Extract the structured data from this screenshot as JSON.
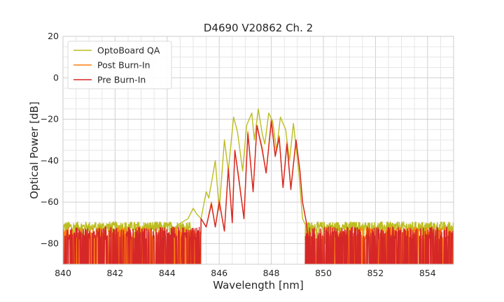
{
  "chart_data": {
    "type": "line",
    "title": "D4690 V20862 Ch. 2",
    "xlabel": "Wavelength [nm]",
    "ylabel": "Optical Power [dB]",
    "xlim": [
      840,
      855
    ],
    "ylim": [
      -90,
      20
    ],
    "xticks": [
      "840",
      "842",
      "844",
      "846",
      "848",
      "850",
      "852",
      "854"
    ],
    "xtick_values": [
      840,
      842,
      844,
      846,
      848,
      850,
      852,
      854
    ],
    "yticks": [
      "20",
      "0",
      "−20",
      "−40",
      "−60",
      "−80"
    ],
    "ytick_values": [
      20,
      0,
      -20,
      -40,
      -60,
      -80
    ],
    "grid": true,
    "legend_position": "top-left",
    "series": [
      {
        "name": "OptoBoard QA",
        "color": "#bcbd22",
        "noise_floor": -72,
        "noise_range_low": [
          840,
          844.9
        ],
        "noise_range_high": [
          849.3,
          855
        ],
        "x": [
          844.4,
          844.8,
          845.0,
          845.15,
          845.3,
          845.5,
          845.6,
          845.85,
          846.0,
          846.2,
          846.35,
          846.55,
          846.7,
          846.9,
          847.05,
          847.25,
          847.35,
          847.5,
          847.65,
          847.75,
          847.9,
          848.05,
          848.2,
          848.35,
          848.55,
          848.7,
          848.85,
          849.05,
          849.2,
          849.35
        ],
        "y": [
          -71,
          -68,
          -63,
          -66,
          -68,
          -55,
          -58,
          -40,
          -64,
          -30,
          -45,
          -19,
          -26,
          -45,
          -23,
          -17,
          -30,
          -15,
          -27,
          -32,
          -17,
          -21,
          -35,
          -19,
          -25,
          -40,
          -22,
          -45,
          -68,
          -72
        ]
      },
      {
        "name": "Post Burn-In",
        "color": "#ff7f0e",
        "noise_floor": -85,
        "noise_range_low": [
          840,
          845.3
        ],
        "noise_range_high": [
          849.3,
          855
        ],
        "x": [
          845.3,
          845.5,
          845.7,
          845.85,
          846.0,
          846.2,
          846.35,
          846.5,
          846.6,
          846.75,
          846.95,
          847.1,
          847.3,
          847.45,
          847.65,
          847.8,
          848.0,
          848.15,
          848.3,
          848.45,
          848.6,
          848.75,
          848.95,
          849.1,
          849.2,
          849.35,
          849.45
        ],
        "y": [
          -68,
          -72,
          -60,
          -72,
          -59,
          -74,
          -43,
          -70,
          -35,
          -48,
          -68,
          -26,
          -55,
          -23,
          -34,
          -46,
          -20,
          -37,
          -28,
          -53,
          -31,
          -53,
          -30,
          -45,
          -60,
          -70,
          -85
        ]
      },
      {
        "name": "Pre Burn-In",
        "color": "#d62728",
        "noise_floor": -85,
        "noise_range_low": [
          840,
          845.3
        ],
        "noise_range_high": [
          849.3,
          855
        ],
        "x": [
          845.3,
          845.5,
          845.7,
          845.85,
          846.0,
          846.2,
          846.35,
          846.5,
          846.6,
          846.75,
          846.95,
          847.1,
          847.3,
          847.45,
          847.65,
          847.8,
          848.0,
          848.15,
          848.3,
          848.45,
          848.6,
          848.75,
          848.95,
          849.1,
          849.2,
          849.35,
          849.45
        ],
        "y": [
          -68,
          -72,
          -61,
          -72,
          -60,
          -74,
          -44,
          -70,
          -35,
          -49,
          -68,
          -27,
          -55,
          -23,
          -35,
          -46,
          -21,
          -38,
          -29,
          -53,
          -32,
          -54,
          -30,
          -45,
          -60,
          -70,
          -85
        ]
      }
    ]
  }
}
